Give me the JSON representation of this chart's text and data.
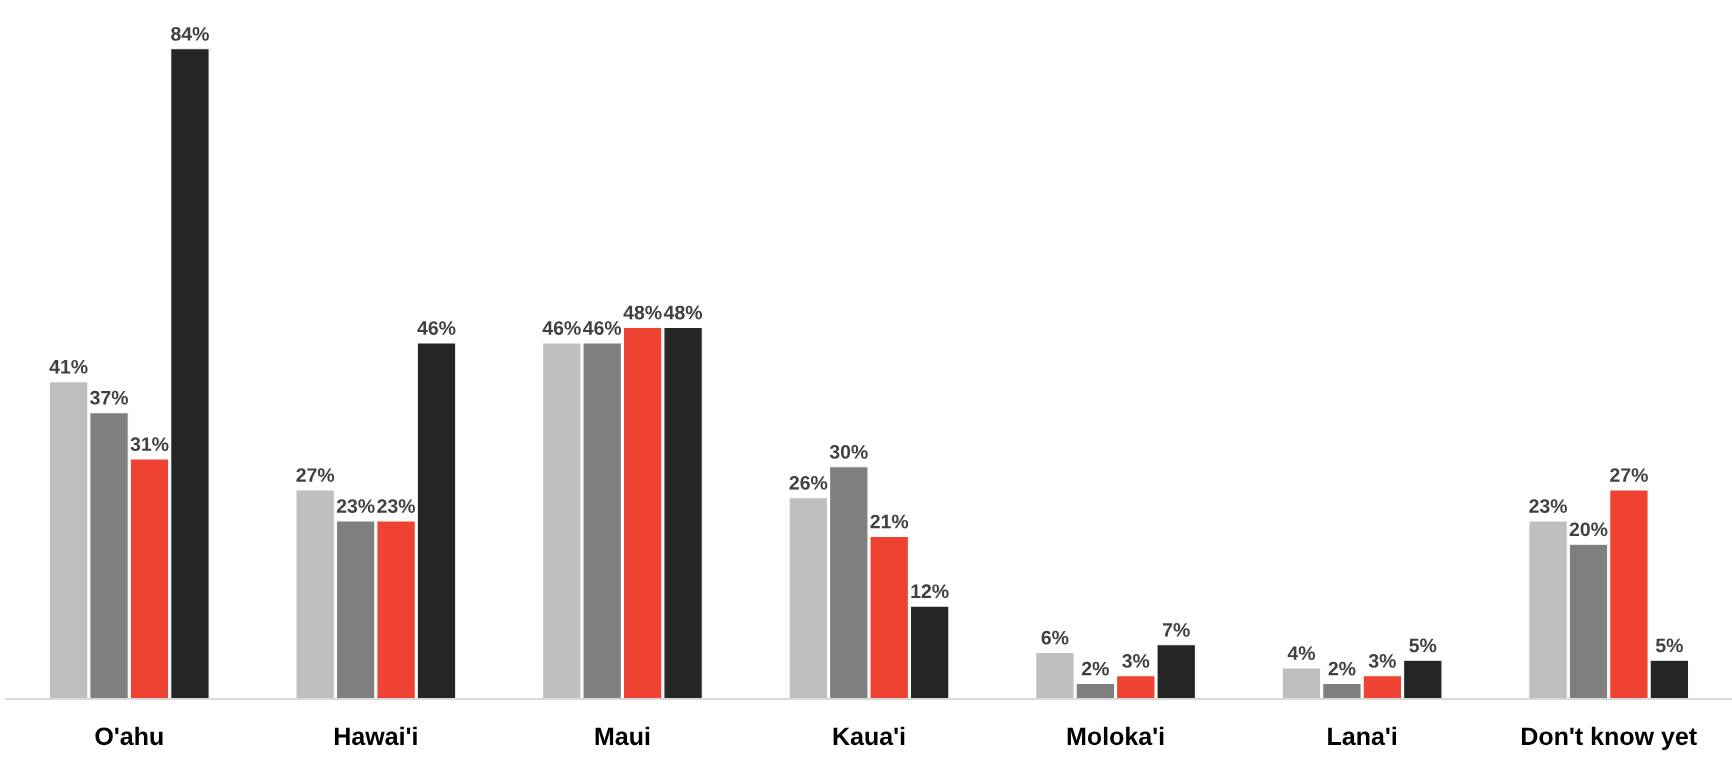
{
  "chart_data": {
    "type": "bar",
    "categories": [
      "O'ahu",
      "Hawai'i",
      "Maui",
      "Kaua'i",
      "Moloka'i",
      "Lana'i",
      "Don't know yet"
    ],
    "series": [
      {
        "color": "#bfbfbf",
        "values": [
          41,
          27,
          46,
          26,
          6,
          4,
          23
        ],
        "value_labels": [
          "41%",
          "27%",
          "46%",
          "26%",
          "6%",
          "4%",
          "23%"
        ]
      },
      {
        "color": "#7f7f7f",
        "values": [
          37,
          23,
          46,
          30,
          2,
          2,
          20
        ],
        "value_labels": [
          "37%",
          "23%",
          "46%",
          "30%",
          "2%",
          "2%",
          "20%"
        ]
      },
      {
        "color": "#ee4232",
        "values": [
          31,
          23,
          48,
          21,
          3,
          3,
          27
        ],
        "value_labels": [
          "31%",
          "23%",
          "48%",
          "21%",
          "3%",
          "3%",
          "27%"
        ]
      },
      {
        "color": "#252525",
        "values": [
          84,
          46,
          48,
          12,
          7,
          5,
          5
        ],
        "value_labels": [
          "84%",
          "46%",
          "48%",
          "12%",
          "7%",
          "5%",
          "5%"
        ]
      }
    ],
    "grid": false
  }
}
